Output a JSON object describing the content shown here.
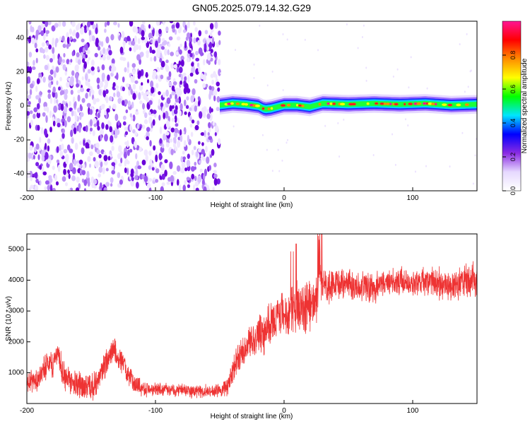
{
  "figure": {
    "title": "GN05.2025.079.14.32.G29"
  },
  "chart_data": [
    {
      "type": "heatmap",
      "xlabel": "Height of straight line (km)",
      "ylabel": "Frequency (Hz)",
      "xlim": [
        -200,
        150
      ],
      "ylim": [
        -50,
        50
      ],
      "xticks": [
        -200,
        -100,
        0,
        100
      ],
      "yticks": [
        -40,
        -20,
        0,
        20,
        40
      ],
      "grid": false,
      "colorbar": {
        "label": "Normalized spectral amplitude",
        "range": [
          0,
          1
        ],
        "ticks": [
          0.0,
          0.2,
          0.4,
          0.6,
          0.8
        ],
        "tick_labels": [
          "0.0",
          "0.2",
          "0.4",
          "0.6",
          "0.8"
        ],
        "colormap": [
          "#ffffff",
          "#e6d9ff",
          "#8a2be2",
          "#0000ff",
          "#00e5ff",
          "#00ff00",
          "#ffff00",
          "#ff8c00",
          "#ff0000",
          "#ff1493"
        ]
      },
      "noise_region": {
        "x_range": [
          -200,
          -50
        ],
        "freq_range": [
          -50,
          50
        ],
        "amplitude_range": [
          0.0,
          0.15
        ]
      },
      "signal_band": {
        "x_range": [
          -50,
          150
        ],
        "center_freq": [
          [
            -50,
            0.5
          ],
          [
            -40,
            1.5
          ],
          [
            -30,
            1.0
          ],
          [
            -20,
            0.0
          ],
          [
            -15,
            -2.0
          ],
          [
            -10,
            -1.5
          ],
          [
            0,
            0.5
          ],
          [
            10,
            0.5
          ],
          [
            20,
            -0.5
          ],
          [
            30,
            1.5
          ],
          [
            50,
            1.0
          ],
          [
            70,
            1.5
          ],
          [
            90,
            1.0
          ],
          [
            110,
            1.5
          ],
          [
            130,
            0.5
          ],
          [
            150,
            1.0
          ]
        ],
        "peak_amplitude": 0.9
      }
    },
    {
      "type": "line",
      "xlabel": "Height of straight line (km)",
      "ylabel": "SNR (10 * v/v)",
      "xlim": [
        -200,
        150
      ],
      "ylim": [
        0,
        5500
      ],
      "xticks": [
        -200,
        -100,
        0,
        100
      ],
      "yticks": [
        1000,
        2000,
        3000,
        4000,
        5000
      ],
      "grid": false,
      "line_color": "#ee3333",
      "series": [
        {
          "points": [
            [
              -200,
              700
            ],
            [
              -195,
              750
            ],
            [
              -190,
              850
            ],
            [
              -185,
              1200
            ],
            [
              -182,
              1500
            ],
            [
              -180,
              1200
            ],
            [
              -178,
              1500
            ],
            [
              -176,
              1700
            ],
            [
              -174,
              1300
            ],
            [
              -170,
              800
            ],
            [
              -160,
              600
            ],
            [
              -150,
              500
            ],
            [
              -145,
              700
            ],
            [
              -140,
              1200
            ],
            [
              -135,
              1600
            ],
            [
              -132,
              1800
            ],
            [
              -130,
              1500
            ],
            [
              -125,
              1300
            ],
            [
              -120,
              800
            ],
            [
              -110,
              500
            ],
            [
              -100,
              450
            ],
            [
              -90,
              450
            ],
            [
              -80,
              430
            ],
            [
              -70,
              400
            ],
            [
              -60,
              400
            ],
            [
              -50,
              400
            ],
            [
              -45,
              550
            ],
            [
              -40,
              1000
            ],
            [
              -35,
              1500
            ],
            [
              -30,
              1900
            ],
            [
              -25,
              2000
            ],
            [
              -20,
              2200
            ],
            [
              -15,
              2300
            ],
            [
              -10,
              2600
            ],
            [
              -5,
              2800
            ],
            [
              0,
              2900
            ],
            [
              5,
              3000
            ],
            [
              10,
              3100
            ],
            [
              15,
              3000
            ],
            [
              20,
              3200
            ],
            [
              25,
              3100
            ],
            [
              27,
              4500
            ],
            [
              30,
              3800
            ],
            [
              35,
              3700
            ],
            [
              40,
              3900
            ],
            [
              50,
              3850
            ],
            [
              60,
              3800
            ],
            [
              70,
              3750
            ],
            [
              80,
              3900
            ],
            [
              90,
              3950
            ],
            [
              100,
              3900
            ],
            [
              110,
              4000
            ],
            [
              120,
              3900
            ],
            [
              130,
              3800
            ],
            [
              140,
              4000
            ],
            [
              150,
              4000
            ]
          ],
          "noise_amplitude": [
            [
              -200,
              450
            ],
            [
              -180,
              500
            ],
            [
              -140,
              550
            ],
            [
              -120,
              400
            ],
            [
              -100,
              250
            ],
            [
              -50,
              250
            ],
            [
              -40,
              550
            ],
            [
              -20,
              750
            ],
            [
              0,
              900
            ],
            [
              25,
              1100
            ],
            [
              30,
              700
            ],
            [
              50,
              550
            ],
            [
              100,
              550
            ],
            [
              150,
              650
            ]
          ]
        }
      ]
    }
  ]
}
